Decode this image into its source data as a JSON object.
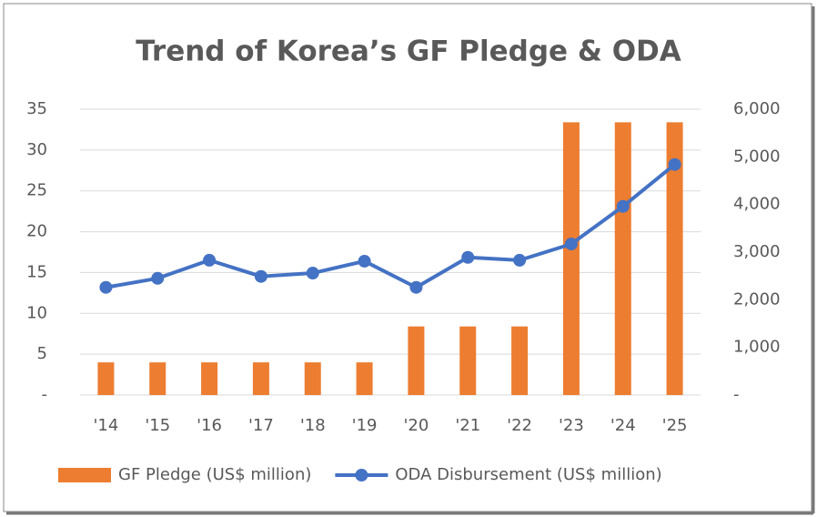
{
  "chart_data": {
    "type": "bar-line",
    "title": "Trend of Korea’s GF Pledge & ODA",
    "categories": [
      "'14",
      "'15",
      "'16",
      "'17",
      "'18",
      "'19",
      "'20",
      "'21",
      "'22",
      "'23",
      "'24",
      "'25"
    ],
    "series": [
      {
        "name": "GF Pledge (US$ million)",
        "type": "bar",
        "color": "#ed7d31",
        "values": [
          4,
          4,
          4,
          4,
          4,
          4,
          8.4,
          8.4,
          8.4,
          33.4,
          33.4,
          33.4
        ]
      },
      {
        "name": "ODA Disbursement (US$ million)",
        "type": "line",
        "axis": "y2",
        "color": "#4472c4",
        "values": [
          2260,
          2450,
          2830,
          2490,
          2560,
          2810,
          2260,
          2890,
          2830,
          3170,
          3960,
          4840
        ]
      }
    ],
    "ylim": [
      0,
      35
    ],
    "yticks": [
      {
        "value": 0,
        "label": "-"
      },
      5,
      10,
      15,
      20,
      25,
      30,
      35
    ],
    "y2lim": [
      0,
      6000
    ],
    "y2ticks": [
      {
        "value": 0,
        "label": "-"
      },
      {
        "value": 1000,
        "label": "1,000"
      },
      {
        "value": 2000,
        "label": "2,000"
      },
      {
        "value": 3000,
        "label": "3,000"
      },
      {
        "value": 4000,
        "label": "4,000"
      },
      {
        "value": 5000,
        "label": "5,000"
      },
      {
        "value": 6000,
        "label": "6,000"
      }
    ],
    "grid": true,
    "legend": "bottom"
  }
}
